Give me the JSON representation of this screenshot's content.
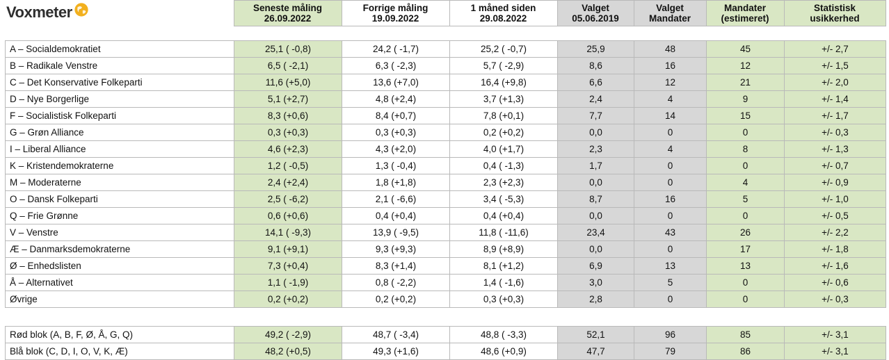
{
  "brand": {
    "name": "Voxmeter",
    "logo_color": "#f2b01e"
  },
  "colors": {
    "green": "#d9e7c4",
    "gray": "#d7d7d7",
    "border": "#b9b9b9"
  },
  "columns": [
    {
      "l1": "Seneste måling",
      "l2": "26.09.2022"
    },
    {
      "l1": "Forrige  måling",
      "l2": "19.09.2022"
    },
    {
      "l1": "1 måned siden",
      "l2": "29.08.2022"
    },
    {
      "l1": "Valget",
      "l2": "05.06.2019"
    },
    {
      "l1": "Valget",
      "l2": "Mandater"
    },
    {
      "l1": "Mandater",
      "l2": "(estimeret)"
    },
    {
      "l1": "Statistisk",
      "l2": "usikkerhed"
    }
  ],
  "parties": [
    {
      "name": "A – Socialdemokratiet",
      "latest": "25,1 ( -0,8)",
      "previous": "24,2 ( -1,7)",
      "month_ago": "25,2 ( -0,7)",
      "election_pct": "25,9",
      "election_seats": "48",
      "seats_est": "45",
      "uncertainty": "+/- 2,7"
    },
    {
      "name": "B – Radikale Venstre",
      "latest": "6,5 ( -2,1)",
      "previous": "6,3 ( -2,3)",
      "month_ago": "5,7 ( -2,9)",
      "election_pct": "8,6",
      "election_seats": "16",
      "seats_est": "12",
      "uncertainty": "+/- 1,5"
    },
    {
      "name": "C – Det Konservative Folkeparti",
      "latest": "11,6 (+5,0)",
      "previous": "13,6 (+7,0)",
      "month_ago": "16,4 (+9,8)",
      "election_pct": "6,6",
      "election_seats": "12",
      "seats_est": "21",
      "uncertainty": "+/- 2,0"
    },
    {
      "name": "D – Nye Borgerlige",
      "latest": "5,1 (+2,7)",
      "previous": "4,8 (+2,4)",
      "month_ago": "3,7 (+1,3)",
      "election_pct": "2,4",
      "election_seats": "4",
      "seats_est": "9",
      "uncertainty": "+/- 1,4"
    },
    {
      "name": "F – Socialistisk Folkeparti",
      "latest": "8,3 (+0,6)",
      "previous": "8,4 (+0,7)",
      "month_ago": "7,8 (+0,1)",
      "election_pct": "7,7",
      "election_seats": "14",
      "seats_est": "15",
      "uncertainty": "+/- 1,7"
    },
    {
      "name": "G – Grøn Alliance",
      "latest": "0,3 (+0,3)",
      "previous": "0,3 (+0,3)",
      "month_ago": "0,2 (+0,2)",
      "election_pct": "0,0",
      "election_seats": "0",
      "seats_est": "0",
      "uncertainty": "+/- 0,3"
    },
    {
      "name": "I – Liberal Alliance",
      "latest": "4,6 (+2,3)",
      "previous": "4,3 (+2,0)",
      "month_ago": "4,0 (+1,7)",
      "election_pct": "2,3",
      "election_seats": "4",
      "seats_est": "8",
      "uncertainty": "+/- 1,3"
    },
    {
      "name": "K – Kristendemokraterne",
      "latest": "1,2 ( -0,5)",
      "previous": "1,3 ( -0,4)",
      "month_ago": "0,4 ( -1,3)",
      "election_pct": "1,7",
      "election_seats": "0",
      "seats_est": "0",
      "uncertainty": "+/- 0,7"
    },
    {
      "name": "M – Moderaterne",
      "latest": "2,4 (+2,4)",
      "previous": "1,8 (+1,8)",
      "month_ago": "2,3 (+2,3)",
      "election_pct": "0,0",
      "election_seats": "0",
      "seats_est": "4",
      "uncertainty": "+/- 0,9"
    },
    {
      "name": "O – Dansk Folkeparti",
      "latest": "2,5 ( -6,2)",
      "previous": "2,1 ( -6,6)",
      "month_ago": "3,4 ( -5,3)",
      "election_pct": "8,7",
      "election_seats": "16",
      "seats_est": "5",
      "uncertainty": "+/- 1,0"
    },
    {
      "name": "Q – Frie Grønne",
      "latest": "0,6 (+0,6)",
      "previous": "0,4 (+0,4)",
      "month_ago": "0,4 (+0,4)",
      "election_pct": "0,0",
      "election_seats": "0",
      "seats_est": "0",
      "uncertainty": "+/- 0,5"
    },
    {
      "name": "V – Venstre",
      "latest": "14,1 ( -9,3)",
      "previous": "13,9 ( -9,5)",
      "month_ago": "11,8 ( -11,6)",
      "election_pct": "23,4",
      "election_seats": "43",
      "seats_est": "26",
      "uncertainty": "+/- 2,2"
    },
    {
      "name": "Æ – Danmarksdemokraterne",
      "latest": "9,1 (+9,1)",
      "previous": "9,3 (+9,3)",
      "month_ago": "8,9 (+8,9)",
      "election_pct": "0,0",
      "election_seats": "0",
      "seats_est": "17",
      "uncertainty": "+/- 1,8"
    },
    {
      "name": "Ø – Enhedslisten",
      "latest": "7,3 (+0,4)",
      "previous": "8,3 (+1,4)",
      "month_ago": "8,1 (+1,2)",
      "election_pct": "6,9",
      "election_seats": "13",
      "seats_est": "13",
      "uncertainty": "+/- 1,6"
    },
    {
      "name": "Å – Alternativet",
      "latest": "1,1 ( -1,9)",
      "previous": "0,8 ( -2,2)",
      "month_ago": "1,4 ( -1,6)",
      "election_pct": "3,0",
      "election_seats": "5",
      "seats_est": "0",
      "uncertainty": "+/- 0,6"
    },
    {
      "name": "Øvrige",
      "latest": "0,2 (+0,2)",
      "previous": "0,2 (+0,2)",
      "month_ago": "0,3 (+0,3)",
      "election_pct": "2,8",
      "election_seats": "0",
      "seats_est": "0",
      "uncertainty": "+/- 0,3"
    }
  ],
  "blocs": [
    {
      "name": "Rød blok (A, B, F, Ø, Å, G, Q)",
      "latest": "49,2 ( -2,9)",
      "previous": "48,7 ( -3,4)",
      "month_ago": "48,8 ( -3,3)",
      "election_pct": "52,1",
      "election_seats": "96",
      "seats_est": "85",
      "uncertainty": "+/- 3,1"
    },
    {
      "name": "Blå blok (C, D, I, O, V, K, Æ)",
      "latest": "48,2 (+0,5)",
      "previous": "49,3 (+1,6)",
      "month_ago": "48,6 (+0,9)",
      "election_pct": "47,7",
      "election_seats": "79",
      "seats_est": "86",
      "uncertainty": "+/- 3,1"
    }
  ]
}
